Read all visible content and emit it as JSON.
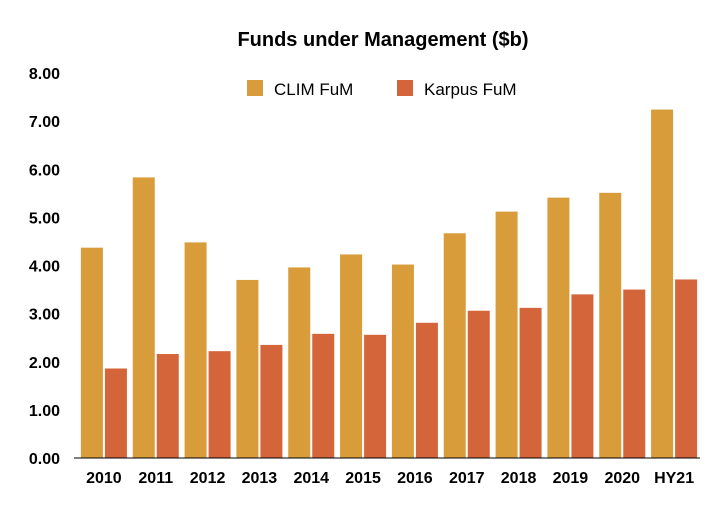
{
  "chart_data": {
    "type": "bar",
    "title": "Funds under Management ($b)",
    "categories": [
      "2010",
      "2011",
      "2012",
      "2013",
      "2014",
      "2015",
      "2016",
      "2017",
      "2018",
      "2019",
      "2020",
      "HY21"
    ],
    "series": [
      {
        "name": "CLIM FuM",
        "color": "#d99c3a",
        "values": [
          4.37,
          5.83,
          4.48,
          3.7,
          3.96,
          4.23,
          4.02,
          4.67,
          5.12,
          5.41,
          5.51,
          7.24
        ]
      },
      {
        "name": "Karpus FuM",
        "color": "#d4653a",
        "values": [
          1.86,
          2.16,
          2.22,
          2.35,
          2.58,
          2.56,
          2.81,
          3.06,
          3.12,
          3.4,
          3.5,
          3.71
        ]
      }
    ],
    "ylim": [
      0,
      8
    ],
    "yticks": [
      "0.00",
      "1.00",
      "2.00",
      "3.00",
      "4.00",
      "5.00",
      "6.00",
      "7.00",
      "8.00"
    ],
    "ytick_values": [
      0,
      1,
      2,
      3,
      4,
      5,
      6,
      7,
      8
    ],
    "grid": false,
    "legend": "top-center"
  }
}
